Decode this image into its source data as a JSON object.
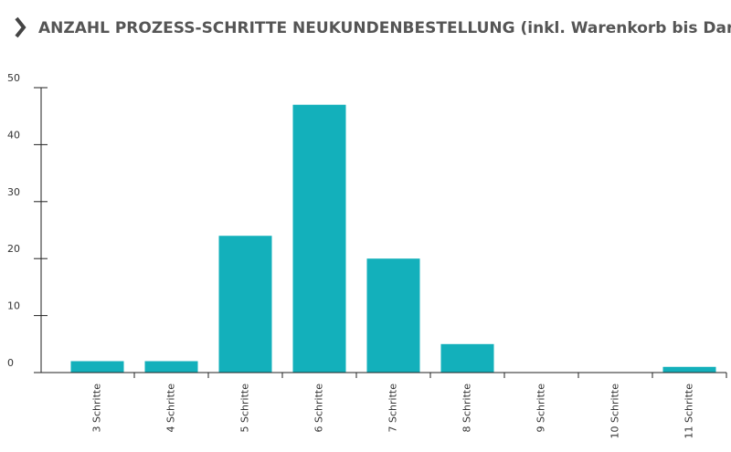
{
  "chart_data": {
    "type": "bar",
    "title": "ANZAHL PROZESS-SCHRITTE NEUKUNDENBESTELLUNG (inkl. Warenkorb bis Dankeseite)",
    "categories": [
      "3 Schritte",
      "4 Schritte",
      "5 Schritte",
      "6 Schritte",
      "7 Schritte",
      "8 Schritte",
      "9 Schritte",
      "10 Schritte",
      "11 Schritte"
    ],
    "values": [
      2,
      2,
      24,
      47,
      20,
      5,
      0,
      0,
      1
    ],
    "color": "#13b0bb",
    "ylim": [
      0,
      50
    ],
    "yticks": [
      0,
      10,
      20,
      30,
      40,
      50
    ],
    "grid": false
  }
}
